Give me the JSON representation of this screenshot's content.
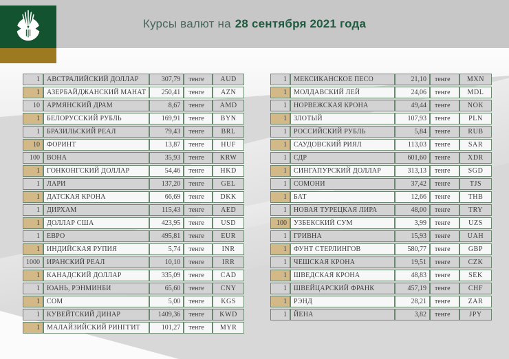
{
  "header": {
    "title_prefix": "Курсы валют на",
    "title_date": "28 сентября 2021 года"
  },
  "logo": {
    "icon": "national-bank-kazakhstan-emblem"
  },
  "unit_label": "тенге",
  "colors": {
    "brand_green": "#14532f",
    "gold": "#9d7a1f",
    "tan_cell": "#d3b888",
    "row_gray": "#d3d3d3",
    "row_white": "#f7f7f7",
    "border_green": "#69886f",
    "title_green": "#1e5b3f",
    "header_band": "#c7c7c7"
  },
  "tables": [
    {
      "rows": [
        {
          "qty": "1",
          "name": "АВСТРАЛИЙСКИЙ ДОЛЛАР",
          "rate": "307,79",
          "code": "AUD"
        },
        {
          "qty": "1",
          "name": "АЗЕРБАЙДЖАНСКИЙ МАНАТ",
          "rate": "250,41",
          "code": "AZN"
        },
        {
          "qty": "10",
          "name": "АРМЯНСКИЙ ДРАМ",
          "rate": "8,67",
          "code": "AMD"
        },
        {
          "qty": "1",
          "name": "БЕЛОРУССКИЙ РУБЛЬ",
          "rate": "169,91",
          "code": "BYN"
        },
        {
          "qty": "1",
          "name": "БРАЗИЛЬСКИЙ РЕАЛ",
          "rate": "79,43",
          "code": "BRL"
        },
        {
          "qty": "10",
          "name": "ФОРИНТ",
          "rate": "13,87",
          "code": "HUF"
        },
        {
          "qty": "100",
          "name": "ВОНА",
          "rate": "35,93",
          "code": "KRW"
        },
        {
          "qty": "1",
          "name": "ГОНКОНГСКИЙ ДОЛЛАР",
          "rate": "54,46",
          "code": "HKD"
        },
        {
          "qty": "1",
          "name": "ЛАРИ",
          "rate": "137,20",
          "code": "GEL"
        },
        {
          "qty": "1",
          "name": "ДАТСКАЯ КРОНА",
          "rate": "66,69",
          "code": "DKK"
        },
        {
          "qty": "1",
          "name": "ДИРХАМ",
          "rate": "115,43",
          "code": "AED"
        },
        {
          "qty": "1",
          "name": "ДОЛЛАР США",
          "rate": "423,95",
          "code": "USD"
        },
        {
          "qty": "1",
          "name": "ЕВРО",
          "rate": "495,81",
          "code": "EUR"
        },
        {
          "qty": "1",
          "name": "ИНДИЙСКАЯ РУПИЯ",
          "rate": "5,74",
          "code": "INR"
        },
        {
          "qty": "1000",
          "name": "ИРАНСКИЙ РЕАЛ",
          "rate": "10,10",
          "code": "IRR"
        },
        {
          "qty": "1",
          "name": "КАНАДСКИЙ ДОЛЛАР",
          "rate": "335,09",
          "code": "CAD"
        },
        {
          "qty": "1",
          "name": "ЮАНЬ, РЭНМИНБИ",
          "rate": "65,60",
          "code": "CNY"
        },
        {
          "qty": "1",
          "name": "СОМ",
          "rate": "5,00",
          "code": "KGS"
        },
        {
          "qty": "1",
          "name": "КУВЕЙТСКИЙ ДИНАР",
          "rate": "1409,36",
          "code": "KWD"
        },
        {
          "qty": "1",
          "name": "МАЛАЙЗИЙСКИЙ РИНГГИТ",
          "rate": "101,27",
          "code": "MYR"
        }
      ]
    },
    {
      "rows": [
        {
          "qty": "1",
          "name": "МЕКСИКАНСКОЕ ПЕСО",
          "rate": "21,10",
          "code": "MXN"
        },
        {
          "qty": "1",
          "name": "МОЛДАВСКИЙ ЛЕЙ",
          "rate": "24,06",
          "code": "MDL"
        },
        {
          "qty": "1",
          "name": "НОРВЕЖСКАЯ КРОНА",
          "rate": "49,44",
          "code": "NOK"
        },
        {
          "qty": "1",
          "name": "ЗЛОТЫЙ",
          "rate": "107,93",
          "code": "PLN"
        },
        {
          "qty": "1",
          "name": "РОССИЙСКИЙ РУБЛЬ",
          "rate": "5,84",
          "code": "RUB"
        },
        {
          "qty": "1",
          "name": "САУДОВСКИЙ РИЯЛ",
          "rate": "113,03",
          "code": "SAR"
        },
        {
          "qty": "1",
          "name": "СДР",
          "rate": "601,60",
          "code": "XDR"
        },
        {
          "qty": "1",
          "name": "СИНГАПУРСКИЙ ДОЛЛАР",
          "rate": "313,13",
          "code": "SGD"
        },
        {
          "qty": "1",
          "name": "СОМОНИ",
          "rate": "37,42",
          "code": "TJS"
        },
        {
          "qty": "1",
          "name": "БАТ",
          "rate": "12,66",
          "code": "THB"
        },
        {
          "qty": "1",
          "name": "НОВАЯ ТУРЕЦКАЯ ЛИРА",
          "rate": "48,00",
          "code": "TRY"
        },
        {
          "qty": "100",
          "name": "УЗБЕКСКИЙ СУМ",
          "rate": "3,99",
          "code": "UZS"
        },
        {
          "qty": "1",
          "name": "ГРИВНА",
          "rate": "15,93",
          "code": "UAH"
        },
        {
          "qty": "1",
          "name": "ФУНТ СТЕРЛИНГОВ",
          "rate": "580,77",
          "code": "GBP"
        },
        {
          "qty": "1",
          "name": "ЧЕШСКАЯ КРОНА",
          "rate": "19,51",
          "code": "CZK"
        },
        {
          "qty": "1",
          "name": "ШВЕДСКАЯ КРОНА",
          "rate": "48,83",
          "code": "SEK"
        },
        {
          "qty": "1",
          "name": "ШВЕЙЦАРСКИЙ ФРАНК",
          "rate": "457,19",
          "code": "CHF"
        },
        {
          "qty": "1",
          "name": "РЭНД",
          "rate": "28,21",
          "code": "ZAR"
        },
        {
          "qty": "1",
          "name": "ЙЕНА",
          "rate": "3,82",
          "code": "JPY"
        }
      ]
    }
  ]
}
